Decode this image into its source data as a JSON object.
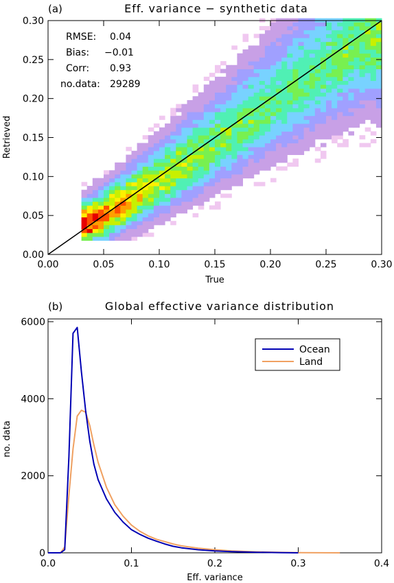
{
  "chart_data": [
    {
      "panel_label": "(a)",
      "type": "heatmap",
      "title": "Eff. variance − synthetic data",
      "xlabel": "True",
      "ylabel": "Retrieved",
      "xlim": [
        0.0,
        0.3
      ],
      "ylim": [
        0.0,
        0.3
      ],
      "xticks": [
        "0.00",
        "0.05",
        "0.10",
        "0.15",
        "0.20",
        "0.25",
        "0.30"
      ],
      "yticks": [
        "0.00",
        "0.05",
        "0.10",
        "0.15",
        "0.20",
        "0.25",
        "0.30"
      ],
      "stats": [
        {
          "label": "RMSE:",
          "value": "0.04"
        },
        {
          "label": "Bias:",
          "value": "−0.01"
        },
        {
          "label": "Corr:",
          "value": "0.93"
        },
        {
          "label": "no.data:",
          "value": "29289"
        }
      ],
      "one_to_one_line": true,
      "density_ridge": [
        {
          "x": 0.035,
          "y": 0.038,
          "level": 1.0
        },
        {
          "x": 0.05,
          "y": 0.048,
          "level": 0.85
        },
        {
          "x": 0.07,
          "y": 0.065,
          "level": 0.75
        },
        {
          "x": 0.1,
          "y": 0.092,
          "level": 0.6
        },
        {
          "x": 0.15,
          "y": 0.14,
          "level": 0.5
        },
        {
          "x": 0.2,
          "y": 0.19,
          "level": 0.45
        },
        {
          "x": 0.25,
          "y": 0.24,
          "level": 0.45
        },
        {
          "x": 0.29,
          "y": 0.275,
          "level": 0.5
        }
      ],
      "colors": [
        "#ffffff",
        "#f0c8f0",
        "#c8a0e6",
        "#a0a0ff",
        "#78d2ff",
        "#50f0b4",
        "#78f050",
        "#c8f000",
        "#fff000",
        "#ffa000",
        "#ff5000",
        "#e60000"
      ]
    },
    {
      "panel_label": "(b)",
      "type": "line",
      "title": "Global effective variance distribution",
      "xlabel": "Eff. variance",
      "ylabel": "no. data",
      "xlim": [
        0.0,
        0.4
      ],
      "ylim": [
        0,
        6000
      ],
      "xticks": [
        "0.0",
        "0.1",
        "0.2",
        "0.3",
        "0.4"
      ],
      "yticks": [
        "0",
        "2000",
        "4000",
        "6000"
      ],
      "legend_position": "top-right",
      "series": [
        {
          "name": "Ocean",
          "color": "#0000b4",
          "x": [
            0.0,
            0.015,
            0.02,
            0.025,
            0.03,
            0.035,
            0.04,
            0.045,
            0.05,
            0.055,
            0.06,
            0.07,
            0.08,
            0.09,
            0.1,
            0.11,
            0.12,
            0.13,
            0.14,
            0.15,
            0.16,
            0.18,
            0.2,
            0.22,
            0.25,
            0.28,
            0.3
          ],
          "y": [
            0,
            0,
            80,
            2500,
            5700,
            5850,
            4700,
            3700,
            2900,
            2300,
            1900,
            1400,
            1050,
            800,
            600,
            480,
            380,
            300,
            230,
            170,
            130,
            80,
            50,
            30,
            15,
            5,
            0
          ]
        },
        {
          "name": "Land",
          "color": "#f0a060",
          "x": [
            0.0,
            0.015,
            0.02,
            0.025,
            0.03,
            0.035,
            0.04,
            0.045,
            0.05,
            0.055,
            0.06,
            0.07,
            0.08,
            0.09,
            0.1,
            0.11,
            0.12,
            0.13,
            0.14,
            0.15,
            0.16,
            0.18,
            0.2,
            0.22,
            0.25,
            0.28,
            0.3,
            0.35
          ],
          "y": [
            0,
            0,
            150,
            1500,
            2700,
            3550,
            3700,
            3650,
            3300,
            2800,
            2350,
            1700,
            1250,
            950,
            720,
            560,
            440,
            350,
            290,
            230,
            180,
            120,
            80,
            50,
            25,
            10,
            5,
            0
          ]
        }
      ]
    }
  ]
}
